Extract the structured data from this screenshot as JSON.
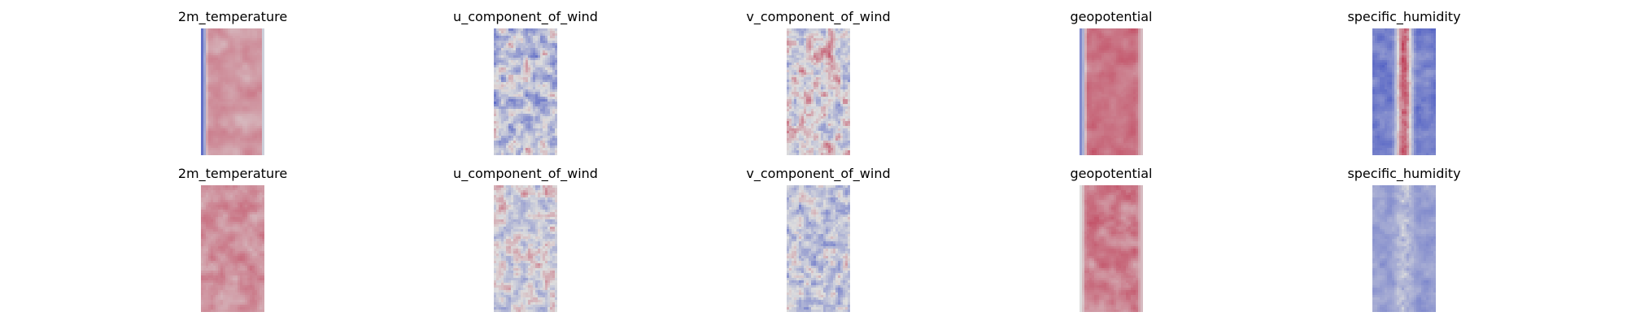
{
  "chart_data": [
    {
      "type": "heatmap",
      "title": "2m_temperature",
      "colormap": "coolwarm",
      "colors": {
        "low": "#3b4cc0",
        "mid": "#dddddd",
        "high": "#b40426"
      },
      "pattern": {
        "mean": 0.66,
        "noise_amp": 0.1,
        "noise_scale": 0.16,
        "seed": 11,
        "edges": [
          {
            "col": 0,
            "width": 0.1,
            "value": 0.12
          },
          {
            "col": 1,
            "width": 0.04,
            "value": 0.45
          }
        ]
      }
    },
    {
      "type": "heatmap",
      "title": "u_component_of_wind",
      "colormap": "coolwarm",
      "colors": {
        "low": "#3b4cc0",
        "mid": "#dddddd",
        "high": "#b40426"
      },
      "pattern": {
        "mean": 0.4,
        "noise_amp": 0.36,
        "noise_scale": 0.3,
        "seed": 23,
        "edges": []
      }
    },
    {
      "type": "heatmap",
      "title": "v_component_of_wind",
      "colormap": "coolwarm",
      "colors": {
        "low": "#3b4cc0",
        "mid": "#dddddd",
        "high": "#b40426"
      },
      "pattern": {
        "mean": 0.5,
        "noise_amp": 0.34,
        "noise_scale": 0.34,
        "seed": 37,
        "edges": []
      }
    },
    {
      "type": "heatmap",
      "title": "geopotential",
      "colormap": "coolwarm",
      "colors": {
        "low": "#3b4cc0",
        "mid": "#dddddd",
        "high": "#b40426"
      },
      "pattern": {
        "mean": 0.74,
        "noise_amp": 0.1,
        "noise_scale": 0.18,
        "seed": 41,
        "edges": [
          {
            "col": 0,
            "width": 0.12,
            "value": 0.22
          },
          {
            "col": 1,
            "width": 0.1,
            "value": 0.58
          }
        ]
      }
    },
    {
      "type": "heatmap",
      "title": "specific_humidity",
      "colormap": "coolwarm",
      "colors": {
        "low": "#3b4cc0",
        "mid": "#dddddd",
        "high": "#b40426"
      },
      "pattern": {
        "mean": 0.18,
        "noise_amp": 0.12,
        "noise_scale": 0.28,
        "seed": 53,
        "band": {
          "center": 0.5,
          "width": 0.22,
          "value": 0.78
        },
        "edges": []
      }
    },
    {
      "type": "heatmap",
      "title": "2m_temperature",
      "colormap": "coolwarm",
      "colors": {
        "low": "#3b4cc0",
        "mid": "#dddddd",
        "high": "#b40426"
      },
      "pattern": {
        "mean": 0.68,
        "noise_amp": 0.1,
        "noise_scale": 0.24,
        "seed": 61,
        "edges": []
      }
    },
    {
      "type": "heatmap",
      "title": "u_component_of_wind",
      "colormap": "coolwarm",
      "colors": {
        "low": "#3b4cc0",
        "mid": "#dddddd",
        "high": "#b40426"
      },
      "pattern": {
        "mean": 0.48,
        "noise_amp": 0.28,
        "noise_scale": 0.34,
        "seed": 71,
        "edges": []
      }
    },
    {
      "type": "heatmap",
      "title": "v_component_of_wind",
      "colormap": "coolwarm",
      "colors": {
        "low": "#3b4cc0",
        "mid": "#dddddd",
        "high": "#b40426"
      },
      "pattern": {
        "mean": 0.42,
        "noise_amp": 0.28,
        "noise_scale": 0.38,
        "seed": 83,
        "edges": []
      }
    },
    {
      "type": "heatmap",
      "title": "geopotential",
      "colormap": "coolwarm",
      "colors": {
        "low": "#3b4cc0",
        "mid": "#dddddd",
        "high": "#b40426"
      },
      "pattern": {
        "mean": 0.72,
        "noise_amp": 0.12,
        "noise_scale": 0.22,
        "seed": 97,
        "edges": [
          {
            "col": 0,
            "width": 0.1,
            "value": 0.5
          },
          {
            "col": 1,
            "width": 0.1,
            "value": 0.58
          }
        ]
      }
    },
    {
      "type": "heatmap",
      "title": "specific_humidity",
      "colormap": "coolwarm",
      "colors": {
        "low": "#3b4cc0",
        "mid": "#dddddd",
        "high": "#b40426"
      },
      "pattern": {
        "mean": 0.28,
        "noise_amp": 0.1,
        "noise_scale": 0.28,
        "seed": 103,
        "band": {
          "center": 0.5,
          "width": 0.26,
          "value": 0.4
        },
        "edges": []
      }
    }
  ]
}
